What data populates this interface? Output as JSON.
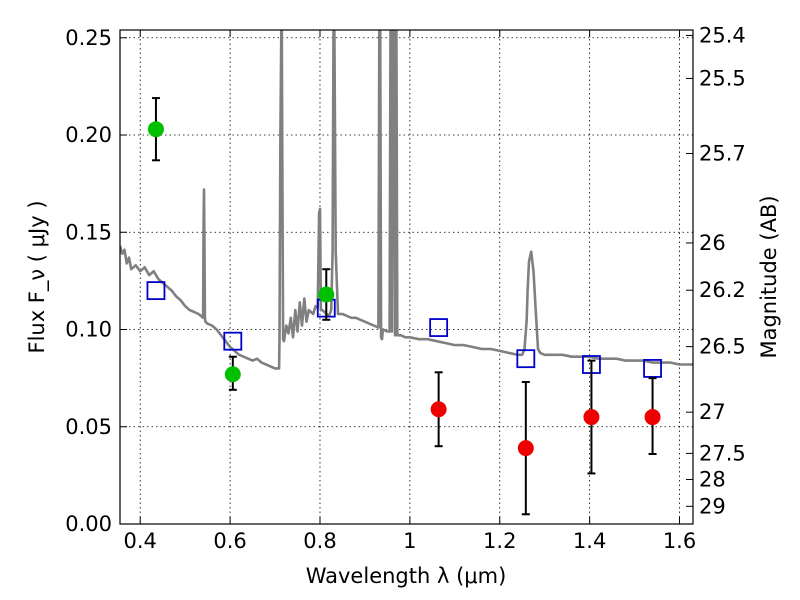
{
  "chart_data": {
    "type": "scatter",
    "xlabel": "Wavelength  λ (μm)",
    "ylabel": "Flux  F_ν  ( μJy )",
    "ylabel_right": "Magnitude (AB)",
    "xlim": [
      0.355,
      1.63
    ],
    "ylim": [
      0.0,
      0.254
    ],
    "grid": true,
    "x_ticks": [
      0.4,
      0.6,
      0.8,
      1.0,
      1.2,
      1.4,
      1.6
    ],
    "x_tick_labels": [
      "0.4",
      "0.6",
      "0.8",
      "1",
      "1.2",
      "1.4",
      "1.6"
    ],
    "y_ticks": [
      0.0,
      0.05,
      0.1,
      0.15,
      0.2,
      0.25
    ],
    "y_tick_labels": [
      "0.00",
      "0.05",
      "0.10",
      "0.15",
      "0.20",
      "0.25"
    ],
    "right_ticks": [
      {
        "label": "25.4",
        "flux": 0.2512
      },
      {
        "label": "25.5",
        "flux": 0.2291
      },
      {
        "label": "25.7",
        "flux": 0.1905
      },
      {
        "label": "26",
        "flux": 0.1445
      },
      {
        "label": "26.2",
        "flux": 0.1202
      },
      {
        "label": "26.5",
        "flux": 0.0912
      },
      {
        "label": "27",
        "flux": 0.0575
      },
      {
        "label": "27.5",
        "flux": 0.0363
      },
      {
        "label": "28",
        "flux": 0.0229
      },
      {
        "label": "29",
        "flux": 0.0091
      }
    ],
    "series": [
      {
        "kind": "line",
        "color": "#808080",
        "x": [
          0.355,
          0.36,
          0.365,
          0.37,
          0.375,
          0.38,
          0.39,
          0.4,
          0.41,
          0.42,
          0.43,
          0.44,
          0.45,
          0.46,
          0.47,
          0.48,
          0.49,
          0.5,
          0.51,
          0.52,
          0.53,
          0.535,
          0.54,
          0.541,
          0.542,
          0.543,
          0.544,
          0.545,
          0.55,
          0.56,
          0.57,
          0.58,
          0.59,
          0.6,
          0.61,
          0.62,
          0.63,
          0.64,
          0.65,
          0.66,
          0.67,
          0.68,
          0.69,
          0.7,
          0.705,
          0.709,
          0.71,
          0.712,
          0.714,
          0.715,
          0.716,
          0.718,
          0.72,
          0.725,
          0.73,
          0.735,
          0.74,
          0.745,
          0.75,
          0.755,
          0.76,
          0.765,
          0.77,
          0.775,
          0.78,
          0.785,
          0.79,
          0.795,
          0.798,
          0.8,
          0.802,
          0.805,
          0.81,
          0.815,
          0.82,
          0.825,
          0.828,
          0.83,
          0.832,
          0.835,
          0.84,
          0.85,
          0.86,
          0.87,
          0.88,
          0.89,
          0.9,
          0.91,
          0.92,
          0.93,
          0.932,
          0.934,
          0.936,
          0.938,
          0.94,
          0.95,
          0.955,
          0.957,
          0.959,
          0.96,
          0.962,
          0.963,
          0.965,
          0.967,
          0.969,
          0.97,
          0.972,
          0.975,
          0.98,
          0.99,
          1.0,
          1.02,
          1.04,
          1.06,
          1.08,
          1.1,
          1.12,
          1.14,
          1.16,
          1.18,
          1.2,
          1.22,
          1.24,
          1.25,
          1.255,
          1.26,
          1.262,
          1.265,
          1.27,
          1.275,
          1.28,
          1.285,
          1.29,
          1.3,
          1.32,
          1.34,
          1.36,
          1.38,
          1.4,
          1.42,
          1.44,
          1.46,
          1.48,
          1.5,
          1.52,
          1.54,
          1.56,
          1.58,
          1.6,
          1.62,
          1.63
        ],
        "y": [
          0.143,
          0.139,
          0.141,
          0.134,
          0.137,
          0.131,
          0.133,
          0.13,
          0.132,
          0.128,
          0.13,
          0.126,
          0.124,
          0.122,
          0.12,
          0.117,
          0.115,
          0.112,
          0.11,
          0.109,
          0.108,
          0.107,
          0.106,
          0.155,
          0.172,
          0.14,
          0.106,
          0.104,
          0.103,
          0.102,
          0.1,
          0.097,
          0.094,
          0.091,
          0.089,
          0.087,
          0.086,
          0.085,
          0.084,
          0.085,
          0.083,
          0.082,
          0.081,
          0.08,
          0.08,
          0.08,
          0.095,
          0.2,
          0.254,
          0.254,
          0.2,
          0.095,
          0.094,
          0.102,
          0.098,
          0.106,
          0.096,
          0.11,
          0.099,
          0.114,
          0.102,
          0.116,
          0.104,
          0.11,
          0.109,
          0.108,
          0.112,
          0.111,
          0.16,
          0.162,
          0.11,
          0.11,
          0.109,
          0.108,
          0.107,
          0.11,
          0.14,
          0.254,
          0.254,
          0.14,
          0.108,
          0.108,
          0.107,
          0.106,
          0.106,
          0.105,
          0.104,
          0.103,
          0.102,
          0.101,
          0.254,
          0.254,
          0.096,
          0.095,
          0.1,
          0.099,
          0.099,
          0.254,
          0.254,
          0.099,
          0.254,
          0.254,
          0.254,
          0.097,
          0.254,
          0.254,
          0.097,
          0.097,
          0.097,
          0.096,
          0.096,
          0.095,
          0.095,
          0.094,
          0.093,
          0.092,
          0.092,
          0.091,
          0.09,
          0.09,
          0.089,
          0.088,
          0.087,
          0.087,
          0.09,
          0.105,
          0.12,
          0.135,
          0.14,
          0.13,
          0.11,
          0.09,
          0.088,
          0.087,
          0.087,
          0.087,
          0.086,
          0.086,
          0.086,
          0.085,
          0.085,
          0.085,
          0.084,
          0.084,
          0.084,
          0.083,
          0.083,
          0.083,
          0.082,
          0.082,
          0.082
        ]
      },
      {
        "kind": "markers",
        "marker": "open-square",
        "color": "#0000cc",
        "x": [
          0.435,
          0.606,
          0.814,
          1.064,
          1.258,
          1.404,
          1.54
        ],
        "y": [
          0.12,
          0.094,
          0.111,
          0.101,
          0.085,
          0.082,
          0.08
        ]
      },
      {
        "kind": "markers",
        "marker": "circle",
        "color": "#00c000",
        "errorbar_color": "#000000",
        "x": [
          0.435,
          0.606,
          0.814
        ],
        "y": [
          0.203,
          0.077,
          0.118
        ],
        "yerr_low": [
          0.187,
          0.069,
          0.105
        ],
        "yerr_high": [
          0.219,
          0.086,
          0.131
        ]
      },
      {
        "kind": "markers",
        "marker": "circle",
        "color": "#ee0000",
        "errorbar_color": "#000000",
        "x": [
          1.064,
          1.258,
          1.404,
          1.54
        ],
        "y": [
          0.059,
          0.039,
          0.055,
          0.055
        ],
        "yerr_low": [
          0.04,
          0.005,
          0.026,
          0.036
        ],
        "yerr_high": [
          0.078,
          0.073,
          0.084,
          0.075
        ]
      }
    ]
  }
}
